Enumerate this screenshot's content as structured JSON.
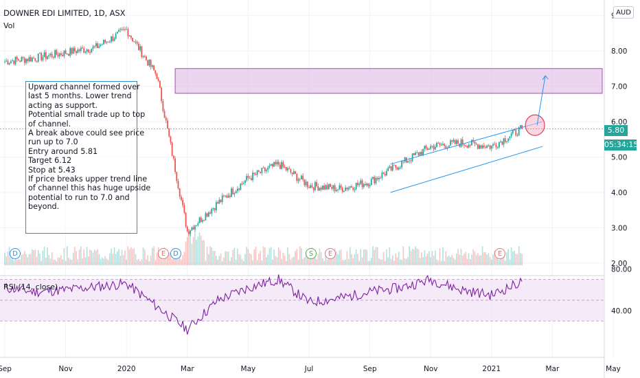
{
  "header": {
    "title": "DOWNER EDI LIMITED, 1D, ASX",
    "volume_label": "Vol",
    "rsi_label": "RSI (14, close)"
  },
  "currency_badge": "AUD",
  "last_price_tag": "5.80",
  "countdown_tag": "05:34:15",
  "annotation": {
    "lines": [
      "Upward channel formed over",
      "last 5 months. Lower trend",
      "acting as support.",
      "Potential small trade up to top",
      "of channel.",
      "A break above could see price",
      "run up to 7.0",
      "Entry around 5.81",
      "Target 6.12",
      "Stop at 5.43",
      "If price breaks upper trend line",
      "of channel this has huge upside",
      "potential to run to 7.0 and",
      "beyond."
    ]
  },
  "events": [
    {
      "label": "D",
      "kind": "dividend",
      "color": "#2196f3",
      "month": "Sep 2019"
    },
    {
      "label": "E",
      "kind": "earnings",
      "color": "#e57373",
      "month": "Feb 2020"
    },
    {
      "label": "D",
      "kind": "dividend",
      "color": "#2196f3",
      "month": "Feb 2020"
    },
    {
      "label": "S",
      "kind": "split",
      "color": "#4caf50",
      "month": "Aug 2020"
    },
    {
      "label": "E",
      "kind": "earnings",
      "color": "#e57373",
      "month": "Aug 2020"
    },
    {
      "label": "E",
      "kind": "earnings",
      "color": "#e57373",
      "month": "Feb 2021"
    }
  ],
  "colors": {
    "up": "#26a69a",
    "down": "#ef5350",
    "rsi": "#7b1fa2",
    "rsi_band": "#f3e5f5",
    "zone": "#e1bee7",
    "channel": "#2196f3",
    "last_price": "#26a69a"
  },
  "chart_data": [
    {
      "type": "candlestick",
      "title": "DOWNER EDI LIMITED, 1D, ASX",
      "currency": "AUD",
      "y_axis_ticks": [
        "2.00",
        "3.00",
        "4.00",
        "5.00",
        "6.00",
        "7.00",
        "8.00",
        "9.00"
      ],
      "ylim": [
        2.0,
        9.0
      ],
      "x_axis_ticks": [
        "Sep",
        "Nov",
        "2020",
        "Mar",
        "May",
        "Jul",
        "Sep",
        "Nov",
        "2021",
        "Mar",
        "May"
      ],
      "last_price": 5.8,
      "series": [
        {
          "name": "close",
          "x": [
            "Sep 2019",
            "Oct 2019",
            "Nov 2019",
            "Dec 2019",
            "Jan 2020",
            "Feb 2020",
            "Mar 2020",
            "Apr 2020",
            "May 2020",
            "Jun 2020",
            "Jul 2020",
            "Aug 2020",
            "Sep 2020",
            "Oct 2020",
            "Nov 2020",
            "Dec 2020",
            "Jan 2021",
            "Feb 2021"
          ],
          "values": [
            7.7,
            7.8,
            7.95,
            8.1,
            8.6,
            7.3,
            2.9,
            3.7,
            4.4,
            4.8,
            4.2,
            4.1,
            4.3,
            4.8,
            5.3,
            5.4,
            5.3,
            5.8
          ]
        }
      ],
      "annotations": {
        "resistance_zone": [
          6.8,
          7.5
        ],
        "upward_channel_upper": [
          [
            "Sep 2020",
            4.8
          ],
          [
            "Feb 2021",
            6.0
          ]
        ],
        "upward_channel_lower": [
          [
            "Sep 2020",
            4.0
          ],
          [
            "Feb 2021",
            5.3
          ]
        ],
        "projected_target": 7.3
      },
      "volume_panel": true
    },
    {
      "type": "line",
      "title": "RSI (14, close)",
      "y_axis_ticks": [
        "40.00",
        "80.00"
      ],
      "band": [
        30,
        70
      ],
      "series": [
        {
          "name": "RSI (14, close)",
          "x": [
            "Sep 2019",
            "Oct 2019",
            "Nov 2019",
            "Dec 2019",
            "Jan 2020",
            "Feb 2020",
            "Mar 2020",
            "Apr 2020",
            "May 2020",
            "Jun 2020",
            "Jul 2020",
            "Aug 2020",
            "Sep 2020",
            "Oct 2020",
            "Nov 2020",
            "Dec 2020",
            "Jan 2021",
            "Feb 2021"
          ],
          "values": [
            62,
            58,
            60,
            63,
            66,
            44,
            22,
            50,
            62,
            70,
            48,
            52,
            58,
            62,
            70,
            60,
            55,
            68
          ]
        }
      ]
    }
  ]
}
